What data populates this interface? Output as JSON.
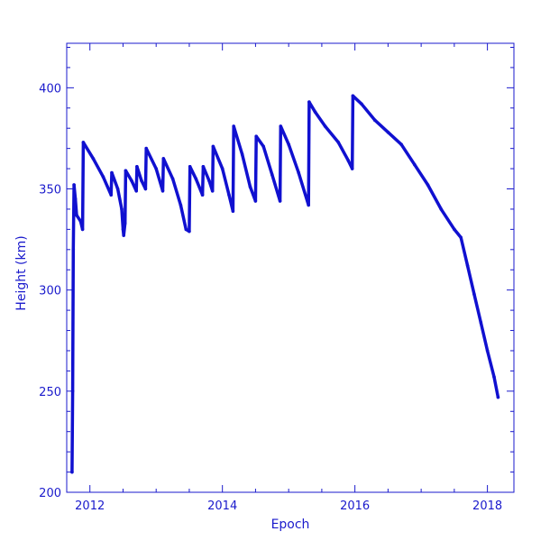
{
  "chart_data": {
    "type": "line",
    "title": "",
    "xlabel": "Epoch",
    "ylabel": "Height (km)",
    "xlim": [
      2011.65,
      2018.4
    ],
    "ylim": [
      200,
      422
    ],
    "x_ticks": [
      2012,
      2014,
      2016,
      2018
    ],
    "y_ticks": [
      200,
      250,
      300,
      350,
      400
    ],
    "grid": false,
    "color": "#1010d0",
    "series": [
      {
        "values": [
          [
            2011.73,
            210
          ],
          [
            2011.74,
            250
          ],
          [
            2011.75,
            320
          ],
          [
            2011.76,
            352
          ],
          [
            2011.78,
            345
          ],
          [
            2011.8,
            337
          ],
          [
            2011.86,
            334
          ],
          [
            2011.89,
            330
          ],
          [
            2011.9,
            373
          ],
          [
            2012.05,
            365
          ],
          [
            2012.2,
            356
          ],
          [
            2012.32,
            347
          ],
          [
            2012.33,
            358
          ],
          [
            2012.42,
            350
          ],
          [
            2012.48,
            340
          ],
          [
            2012.5,
            330
          ],
          [
            2012.51,
            327
          ],
          [
            2012.53,
            333
          ],
          [
            2012.54,
            359
          ],
          [
            2012.63,
            354
          ],
          [
            2012.7,
            349
          ],
          [
            2012.71,
            361
          ],
          [
            2012.78,
            354
          ],
          [
            2012.84,
            350
          ],
          [
            2012.85,
            370
          ],
          [
            2013.0,
            360
          ],
          [
            2013.1,
            349
          ],
          [
            2013.11,
            365
          ],
          [
            2013.25,
            355
          ],
          [
            2013.37,
            342
          ],
          [
            2013.45,
            330
          ],
          [
            2013.5,
            329
          ],
          [
            2013.51,
            361
          ],
          [
            2013.6,
            355
          ],
          [
            2013.7,
            347
          ],
          [
            2013.71,
            361
          ],
          [
            2013.8,
            354
          ],
          [
            2013.85,
            349
          ],
          [
            2013.86,
            371
          ],
          [
            2014.0,
            360
          ],
          [
            2014.1,
            347
          ],
          [
            2014.16,
            339
          ],
          [
            2014.17,
            381
          ],
          [
            2014.3,
            367
          ],
          [
            2014.42,
            351
          ],
          [
            2014.5,
            344
          ],
          [
            2014.51,
            376
          ],
          [
            2014.62,
            371
          ],
          [
            2014.75,
            357
          ],
          [
            2014.87,
            344
          ],
          [
            2014.88,
            381
          ],
          [
            2015.0,
            372
          ],
          [
            2015.15,
            358
          ],
          [
            2015.3,
            342
          ],
          [
            2015.31,
            393
          ],
          [
            2015.4,
            388
          ],
          [
            2015.55,
            381
          ],
          [
            2015.75,
            373
          ],
          [
            2015.9,
            364
          ],
          [
            2015.96,
            360
          ],
          [
            2015.97,
            396
          ],
          [
            2016.1,
            392
          ],
          [
            2016.3,
            384
          ],
          [
            2016.5,
            378
          ],
          [
            2016.7,
            372
          ],
          [
            2016.9,
            362
          ],
          [
            2017.1,
            352
          ],
          [
            2017.3,
            340
          ],
          [
            2017.5,
            330
          ],
          [
            2017.6,
            326
          ],
          [
            2017.7,
            312
          ],
          [
            2017.8,
            298
          ],
          [
            2017.9,
            284
          ],
          [
            2018.0,
            270
          ],
          [
            2018.1,
            257
          ],
          [
            2018.16,
            247
          ]
        ]
      }
    ]
  }
}
